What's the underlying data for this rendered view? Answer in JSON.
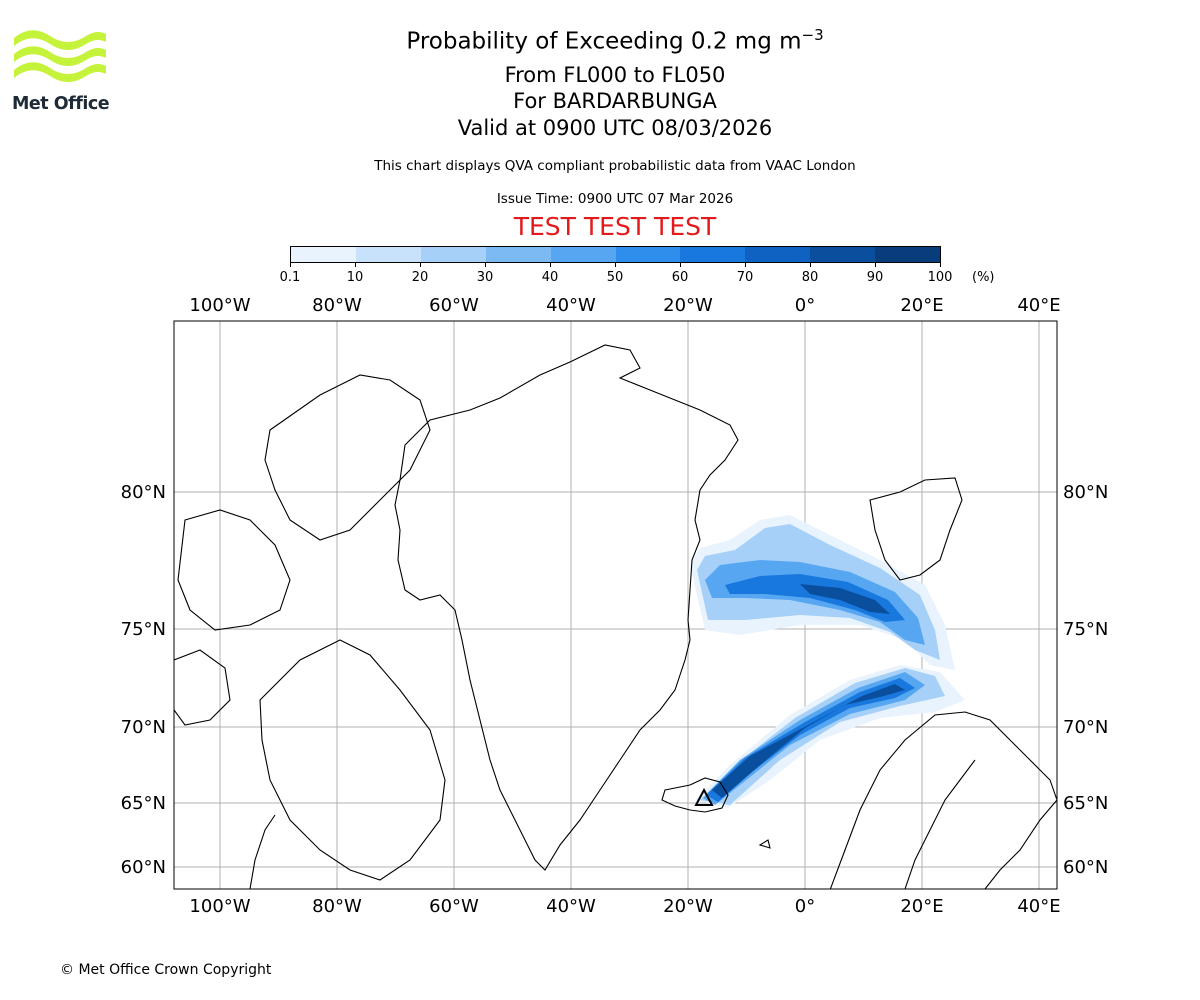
{
  "header": {
    "title_main": "Probability of Exceeding 0.2 mg m",
    "title_main_sup": "−3",
    "line1": "From FL000 to FL050",
    "line2": "For BARDARBUNGA",
    "line3": "Valid at 0900 UTC 08/03/2026",
    "subtitle": "This chart displays QVA compliant probabilistic data from VAAC London",
    "issue_time": "Issue Time: 0900 UTC 07 Mar 2026",
    "test_banner": "TEST TEST TEST",
    "test_banner_color": "#e31a1c"
  },
  "logo": {
    "text": "Met Office",
    "wave_color": "#c5f23a",
    "text_color": "#1e2a36"
  },
  "colorbar": {
    "unit": "(%)",
    "tick_labels": [
      "0.1",
      "10",
      "20",
      "30",
      "40",
      "50",
      "60",
      "70",
      "80",
      "90",
      "100"
    ],
    "colors": [
      "#e8f3fe",
      "#c8e2fb",
      "#a6d0f8",
      "#7cbaf4",
      "#56a6f1",
      "#2f8eeb",
      "#1878dd",
      "#0f62c2",
      "#0a4e9e",
      "#083c7a",
      "#052a55"
    ]
  },
  "map": {
    "lon_labels": [
      "100°W",
      "80°W",
      "60°W",
      "40°W",
      "20°W",
      "0°",
      "20°E",
      "40°E"
    ],
    "lat_labels": [
      "80°N",
      "75°N",
      "70°N",
      "65°N",
      "60°N"
    ],
    "lon_values": [
      -100,
      -80,
      -60,
      -40,
      -20,
      0,
      20,
      40
    ],
    "lat_values": [
      80,
      75,
      70,
      65,
      60
    ],
    "source_marker": "Bardarbunga (triangle near 17°W, 64.6°N)",
    "plume_note": "Ash probability plume extending from Iceland north-east towards Svalbard, then west towards Greenland"
  },
  "footer": {
    "copyright": "© Met Office Crown Copyright"
  }
}
